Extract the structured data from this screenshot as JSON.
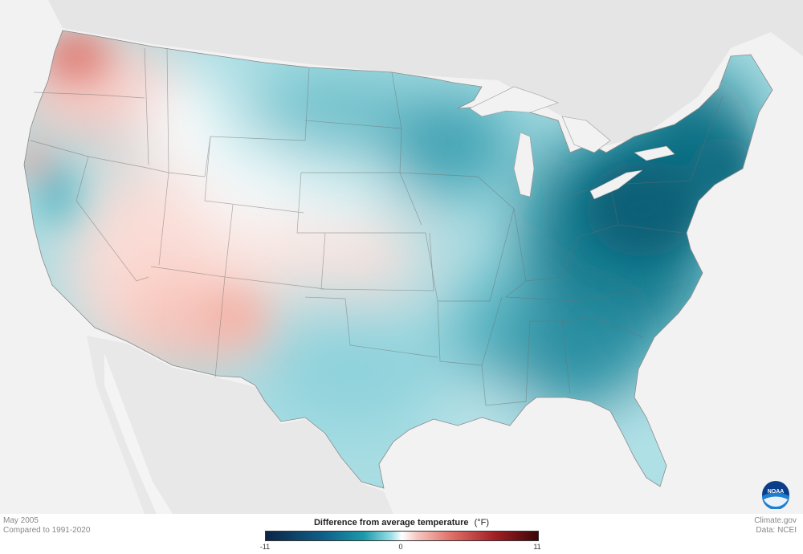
{
  "map": {
    "title": "Difference from average temperature",
    "unit": "(°F)",
    "period": "May 2005",
    "baseline": "Compared to 1991-2020",
    "credit_site": "Climate.gov",
    "credit_data": "Data: NCEI",
    "logo_text": "NOAA",
    "legend": {
      "ticks": [
        "-11",
        "0",
        "11"
      ],
      "colors": {
        "cold_extreme": "#0b2447",
        "cold": "#1a8a9c",
        "neutral": "#ffffff",
        "warm": "#f2a49c",
        "warm_extreme": "#3c0508"
      }
    }
  }
}
